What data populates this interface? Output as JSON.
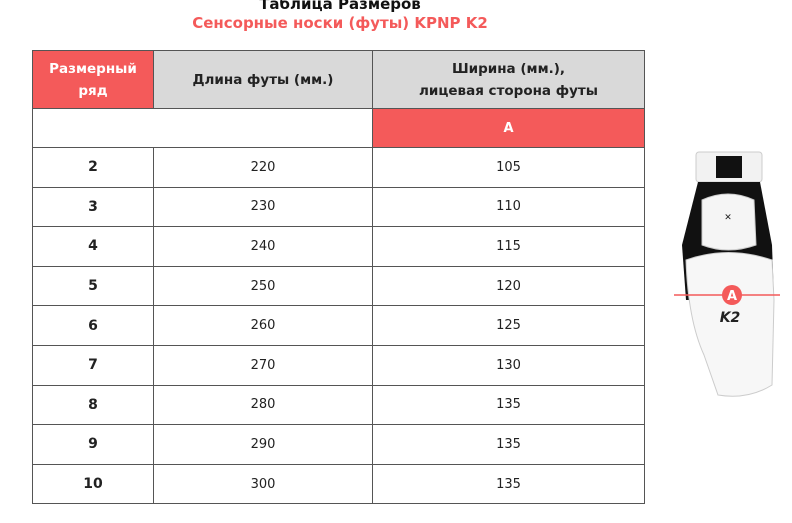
{
  "title": "Таблица Размеров",
  "subtitle": "Сенсорные носки (футы) KPNP K2",
  "table": {
    "headers": [
      "Размерный ряд",
      "Длина футы (мм.)",
      "Ширина (мм.),\nлицевая сторона футы"
    ],
    "header_line1": "Размерный",
    "header_line2": "ряд",
    "width_line1": "Ширина (мм.),",
    "width_line2": "лицевая сторона футы",
    "sub_label": "A",
    "rows": [
      {
        "size": "2",
        "length": "220",
        "width": "105"
      },
      {
        "size": "3",
        "length": "230",
        "width": "110"
      },
      {
        "size": "4",
        "length": "240",
        "width": "115"
      },
      {
        "size": "5",
        "length": "250",
        "width": "120"
      },
      {
        "size": "6",
        "length": "260",
        "width": "125"
      },
      {
        "size": "7",
        "length": "270",
        "width": "130"
      },
      {
        "size": "8",
        "length": "280",
        "width": "135"
      },
      {
        "size": "9",
        "length": "290",
        "width": "135"
      },
      {
        "size": "10",
        "length": "300",
        "width": "135"
      }
    ]
  },
  "image": {
    "marker": "A",
    "model": "K2",
    "brand": "KPNP"
  },
  "colors": {
    "accent": "#f45a5a",
    "header_bg": "#d9d9d9"
  }
}
